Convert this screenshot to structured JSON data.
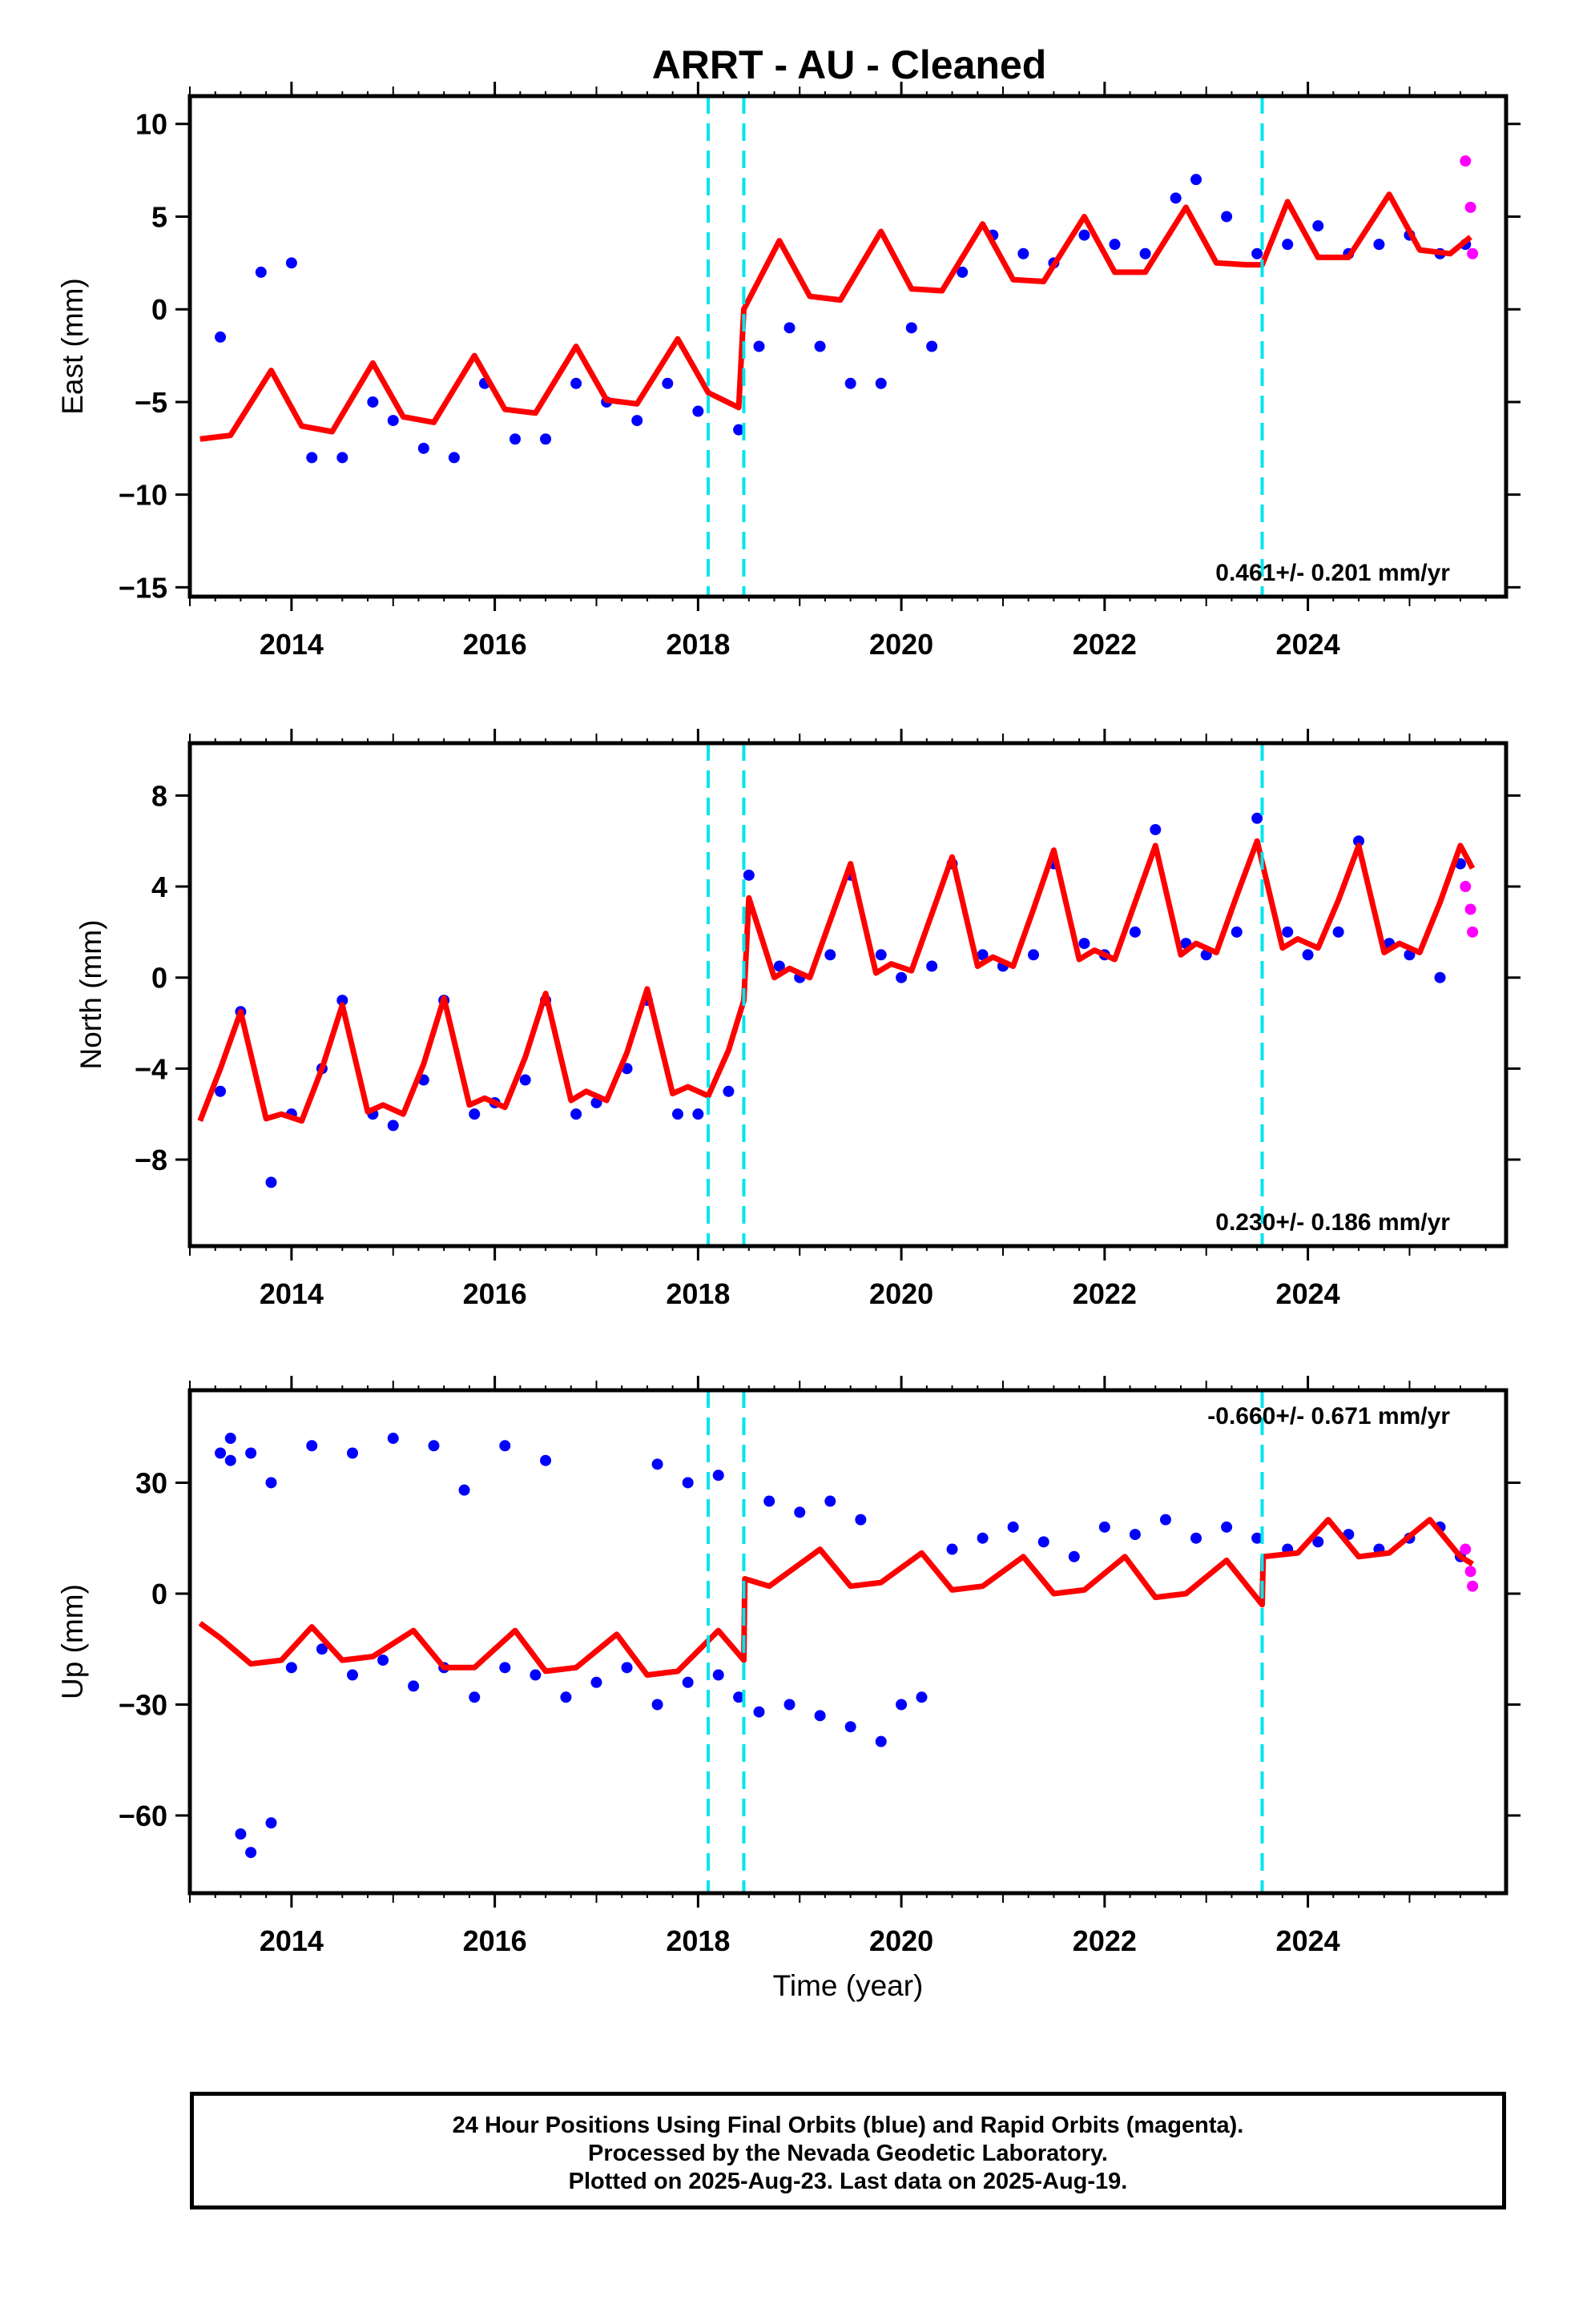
{
  "chart_data": [
    {
      "type": "scatter",
      "title": "ARRT  - AU - Cleaned",
      "ylabel": "East (mm)",
      "xlabel": "",
      "xlim": [
        2013.0,
        2025.95
      ],
      "ylim": [
        -15.5,
        11.5
      ],
      "xticks": [
        "2014",
        "2016",
        "2018",
        "2020",
        "2022",
        "2024"
      ],
      "yticks": [
        "10",
        "5",
        "0",
        "−5",
        "−10",
        "−15"
      ],
      "ytick_values": [
        10,
        5,
        0,
        -5,
        -10,
        -15
      ],
      "rate": "0.461+/- 0.201 mm/yr",
      "rate_position": "bottom-right",
      "steps": [
        2018.1,
        2018.45,
        2023.55
      ],
      "series": [
        {
          "color": "#0000ff",
          "x": [
            2013.3,
            2013.7,
            2014.0,
            2014.2,
            2014.5,
            2014.8,
            2015.0,
            2015.3,
            2015.6,
            2015.9,
            2016.2,
            2016.5,
            2016.8,
            2017.1,
            2017.4,
            2017.7,
            2018.0,
            2018.4,
            2018.6,
            2018.9,
            2019.2,
            2019.5,
            2019.8,
            2020.1,
            2020.3,
            2020.6,
            2020.9,
            2021.2,
            2021.5,
            2021.8,
            2022.1,
            2022.4,
            2022.7,
            2022.9,
            2023.2,
            2023.5,
            2023.8,
            2024.1,
            2024.4,
            2024.7,
            2025.0,
            2025.3,
            2025.55
          ],
          "y": [
            -1.5,
            2.0,
            2.5,
            -8.0,
            -8.0,
            -5.0,
            -6.0,
            -7.5,
            -8.0,
            -4.0,
            -7.0,
            -7.0,
            -4.0,
            -5.0,
            -6.0,
            -4.0,
            -5.5,
            -6.5,
            -2.0,
            -1.0,
            -2.0,
            -4.0,
            -4.0,
            -1.0,
            -2.0,
            2.0,
            4.0,
            3.0,
            2.5,
            4.0,
            3.5,
            3.0,
            6.0,
            7.0,
            5.0,
            3.0,
            3.5,
            4.5,
            3.0,
            3.5,
            4.0,
            3.0,
            3.5
          ]
        },
        {
          "color": "#ff00ff",
          "x": [
            2025.55,
            2025.6,
            2025.62
          ],
          "y": [
            8.0,
            5.5,
            3.0
          ]
        }
      ],
      "model": {
        "color": "#ff0000",
        "x": [
          2013.1,
          2013.4,
          2013.8,
          2014.1,
          2014.4,
          2014.8,
          2015.1,
          2015.4,
          2015.8,
          2016.1,
          2016.4,
          2016.8,
          2017.1,
          2017.4,
          2017.8,
          2018.1,
          2018.4,
          2018.45,
          2018.8,
          2019.1,
          2019.4,
          2019.8,
          2020.1,
          2020.4,
          2020.8,
          2021.1,
          2021.4,
          2021.8,
          2022.1,
          2022.4,
          2022.8,
          2023.1,
          2023.4,
          2023.55,
          2023.8,
          2024.1,
          2024.4,
          2024.8,
          2025.1,
          2025.4,
          2025.6
        ],
        "y": [
          -7.0,
          -6.8,
          -3.3,
          -6.3,
          -6.6,
          -2.9,
          -5.8,
          -6.1,
          -2.5,
          -5.4,
          -5.6,
          -2.0,
          -4.9,
          -5.1,
          -1.6,
          -4.5,
          -5.3,
          0.0,
          3.7,
          0.7,
          0.5,
          4.2,
          1.1,
          1.0,
          4.6,
          1.6,
          1.5,
          5.0,
          2.0,
          2.0,
          5.5,
          2.5,
          2.4,
          2.4,
          5.8,
          2.8,
          2.8,
          6.2,
          3.2,
          3.0,
          3.9
        ]
      }
    },
    {
      "type": "scatter",
      "ylabel": "North (mm)",
      "xlabel": "",
      "xlim": [
        2013.0,
        2025.95
      ],
      "ylim": [
        -11.8,
        10.3
      ],
      "xticks": [
        "2014",
        "2016",
        "2018",
        "2020",
        "2022",
        "2024"
      ],
      "yticks": [
        "8",
        "4",
        "0",
        "−4",
        "−8"
      ],
      "ytick_values": [
        8,
        4,
        0,
        -4,
        -8
      ],
      "rate": "0.230+/- 0.186 mm/yr",
      "rate_position": "bottom-right",
      "steps": [
        2018.1,
        2018.45,
        2023.55
      ],
      "series": [
        {
          "color": "#0000ff",
          "x": [
            2013.3,
            2013.5,
            2013.8,
            2014.0,
            2014.3,
            2014.5,
            2014.8,
            2015.0,
            2015.3,
            2015.5,
            2015.8,
            2016.0,
            2016.3,
            2016.5,
            2016.8,
            2017.0,
            2017.3,
            2017.5,
            2017.8,
            2018.0,
            2018.3,
            2018.5,
            2018.8,
            2019.0,
            2019.3,
            2019.5,
            2019.8,
            2020.0,
            2020.3,
            2020.5,
            2020.8,
            2021.0,
            2021.3,
            2021.5,
            2021.8,
            2022.0,
            2022.3,
            2022.5,
            2022.8,
            2023.0,
            2023.3,
            2023.5,
            2023.8,
            2024.0,
            2024.3,
            2024.5,
            2024.8,
            2025.0,
            2025.3,
            2025.5
          ],
          "y": [
            -5.0,
            -1.5,
            -9.0,
            -6.0,
            -4.0,
            -1.0,
            -6.0,
            -6.5,
            -4.5,
            -1.0,
            -6.0,
            -5.5,
            -4.5,
            -1.0,
            -6.0,
            -5.5,
            -4.0,
            -1.0,
            -6.0,
            -6.0,
            -5.0,
            4.5,
            0.5,
            0.0,
            1.0,
            4.5,
            1.0,
            0.0,
            0.5,
            5.0,
            1.0,
            0.5,
            1.0,
            5.0,
            1.5,
            1.0,
            2.0,
            6.5,
            1.5,
            1.0,
            2.0,
            7.0,
            2.0,
            1.0,
            2.0,
            6.0,
            1.5,
            1.0,
            0.0,
            5.0
          ]
        },
        {
          "color": "#ff00ff",
          "x": [
            2025.55,
            2025.6,
            2025.62
          ],
          "y": [
            4.0,
            3.0,
            2.0
          ]
        }
      ],
      "model": {
        "color": "#ff0000",
        "x": [
          2013.1,
          2013.3,
          2013.5,
          2013.75,
          2013.9,
          2014.1,
          2014.3,
          2014.5,
          2014.75,
          2014.9,
          2015.1,
          2015.3,
          2015.5,
          2015.75,
          2015.9,
          2016.1,
          2016.3,
          2016.5,
          2016.75,
          2016.9,
          2017.1,
          2017.3,
          2017.5,
          2017.75,
          2017.9,
          2018.1,
          2018.3,
          2018.45,
          2018.5,
          2018.75,
          2018.9,
          2019.1,
          2019.3,
          2019.5,
          2019.75,
          2019.9,
          2020.1,
          2020.3,
          2020.5,
          2020.75,
          2020.9,
          2021.1,
          2021.3,
          2021.5,
          2021.75,
          2021.9,
          2022.1,
          2022.3,
          2022.5,
          2022.75,
          2022.9,
          2023.1,
          2023.3,
          2023.5,
          2023.75,
          2023.9,
          2024.1,
          2024.3,
          2024.5,
          2024.75,
          2024.9,
          2025.1,
          2025.3,
          2025.5,
          2025.62
        ],
        "y": [
          -6.3,
          -4.0,
          -1.5,
          -6.2,
          -6.0,
          -6.3,
          -4.0,
          -1.2,
          -5.9,
          -5.6,
          -6.0,
          -3.8,
          -0.9,
          -5.6,
          -5.3,
          -5.7,
          -3.5,
          -0.7,
          -5.4,
          -5.0,
          -5.4,
          -3.3,
          -0.5,
          -5.1,
          -4.8,
          -5.2,
          -3.2,
          -1.0,
          3.5,
          0.0,
          0.4,
          0.0,
          2.5,
          5.0,
          0.2,
          0.6,
          0.3,
          2.8,
          5.3,
          0.5,
          0.9,
          0.5,
          3.0,
          5.6,
          0.8,
          1.2,
          0.8,
          3.3,
          5.8,
          1.0,
          1.5,
          1.1,
          3.6,
          6.0,
          1.3,
          1.7,
          1.3,
          3.4,
          5.8,
          1.1,
          1.5,
          1.1,
          3.3,
          5.8,
          4.8
        ]
      }
    },
    {
      "type": "scatter",
      "ylabel": "Up (mm)",
      "xlabel": "Time (year)",
      "xlim": [
        2013.0,
        2025.95
      ],
      "ylim": [
        -81,
        55
      ],
      "xticks": [
        "2014",
        "2016",
        "2018",
        "2020",
        "2022",
        "2024"
      ],
      "yticks": [
        "30",
        "0",
        "−30",
        "−60"
      ],
      "ytick_values": [
        30,
        0,
        -30,
        -60
      ],
      "rate": "-0.660+/- 0.671 mm/yr",
      "rate_position": "top-right",
      "steps": [
        2018.1,
        2018.45,
        2023.55
      ],
      "series": [
        {
          "color": "#0000ff",
          "x": [
            2013.3,
            2013.4,
            2013.5,
            2013.6,
            2013.8,
            2014.0,
            2014.3,
            2014.6,
            2014.9,
            2015.2,
            2015.5,
            2015.8,
            2016.1,
            2016.4,
            2016.7,
            2017.0,
            2017.3,
            2017.6,
            2017.9,
            2018.2,
            2018.4,
            2018.6,
            2018.9,
            2019.2,
            2019.5,
            2019.8,
            2020.0,
            2020.2,
            2020.5,
            2020.8,
            2021.1,
            2021.4,
            2021.7,
            2022.0,
            2022.3,
            2022.6,
            2022.9,
            2023.2,
            2023.5,
            2023.8,
            2024.1,
            2024.4,
            2024.7,
            2025.0,
            2025.3,
            2025.5,
            2013.4,
            2013.6,
            2013.8,
            2014.2,
            2014.6,
            2015.0,
            2015.4,
            2015.7,
            2016.1,
            2016.5,
            2017.6,
            2017.9,
            2018.2,
            2018.7,
            2019.0,
            2019.3,
            2019.6
          ],
          "y": [
            38,
            36,
            -65,
            -70,
            -62,
            -20,
            -15,
            -22,
            -18,
            -25,
            -20,
            -28,
            -20,
            -22,
            -28,
            -24,
            -20,
            -30,
            -24,
            -22,
            -28,
            -32,
            -30,
            -33,
            -36,
            -40,
            -30,
            -28,
            12,
            15,
            18,
            14,
            10,
            18,
            16,
            20,
            15,
            18,
            15,
            12,
            14,
            16,
            12,
            15,
            18,
            10,
            42,
            38,
            30,
            40,
            38,
            42,
            40,
            28,
            40,
            36,
            35,
            30,
            32,
            25,
            22,
            25,
            20
          ]
        },
        {
          "color": "#ff00ff",
          "x": [
            2025.55,
            2025.6,
            2025.62
          ],
          "y": [
            12,
            6,
            2
          ]
        }
      ],
      "model": {
        "color": "#ff0000",
        "x": [
          2013.1,
          2013.3,
          2013.6,
          2013.9,
          2014.2,
          2014.5,
          2014.8,
          2015.2,
          2015.5,
          2015.8,
          2016.2,
          2016.5,
          2016.8,
          2017.2,
          2017.5,
          2017.8,
          2018.2,
          2018.45,
          2018.46,
          2018.7,
          2019.2,
          2019.5,
          2019.8,
          2020.2,
          2020.5,
          2020.8,
          2021.2,
          2021.5,
          2021.8,
          2022.2,
          2022.5,
          2022.8,
          2023.2,
          2023.55,
          2023.56,
          2023.9,
          2024.2,
          2024.5,
          2024.8,
          2025.2,
          2025.5,
          2025.62
        ],
        "y": [
          -8,
          -12,
          -19,
          -18,
          -9,
          -18,
          -17,
          -10,
          -20,
          -20,
          -10,
          -21,
          -20,
          -11,
          -22,
          -21,
          -10,
          -18,
          4,
          2,
          12,
          2,
          3,
          11,
          1,
          2,
          10,
          0,
          1,
          10,
          -1,
          0,
          9,
          -3,
          10,
          11,
          20,
          10,
          11,
          20,
          10,
          8
        ]
      }
    }
  ],
  "footer": {
    "line1": "24 Hour Positions Using Final Orbits (blue) and Rapid Orbits (magenta).",
    "line2": "Processed by the Nevada Geodetic Laboratory.",
    "line3": "Plotted on 2025-Aug-23. Last data on 2025-Aug-19."
  }
}
